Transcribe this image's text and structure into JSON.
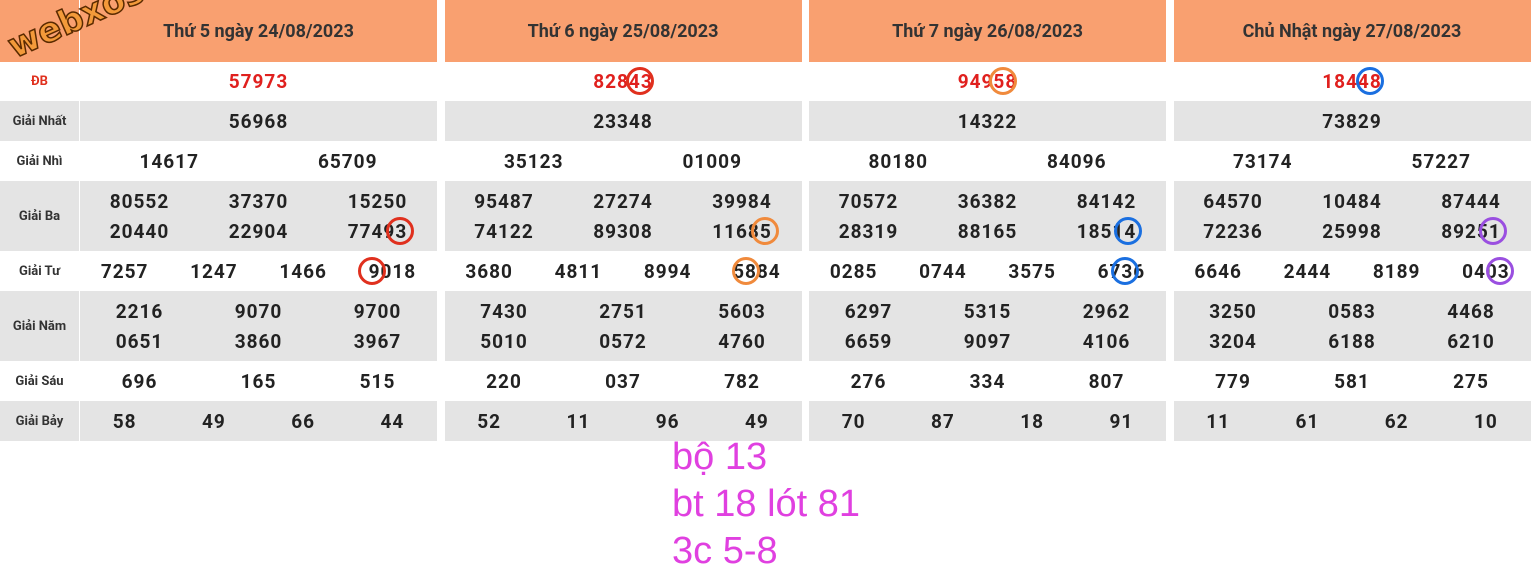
{
  "watermark": "webxoso.net",
  "row_labels": [
    "ĐB",
    "Giải Nhất",
    "Giải Nhì",
    "Giải Ba",
    "Giải Tư",
    "Giải Năm",
    "Giải Sáu",
    "Giải Bảy"
  ],
  "days": [
    {
      "title": "Thứ 5 ngày 24/08/2023",
      "prizes": [
        [
          "57973"
        ],
        [
          "56968"
        ],
        [
          "14617",
          "65709"
        ],
        [
          "80552",
          "37370",
          "15250",
          "20440",
          "22904",
          "77493"
        ],
        [
          "7257",
          "1247",
          "1466",
          "9018"
        ],
        [
          "2216",
          "9070",
          "9700",
          "0651",
          "3860",
          "3967"
        ],
        [
          "696",
          "165",
          "515"
        ],
        [
          "58",
          "49",
          "66",
          "44"
        ]
      ]
    },
    {
      "title": "Thứ 6 ngày 25/08/2023",
      "prizes": [
        [
          "82843"
        ],
        [
          "23348"
        ],
        [
          "35123",
          "01009"
        ],
        [
          "95487",
          "27274",
          "39984",
          "74122",
          "89308",
          "11685"
        ],
        [
          "3680",
          "4811",
          "8994",
          "5884"
        ],
        [
          "7430",
          "2751",
          "5603",
          "5010",
          "0572",
          "4760"
        ],
        [
          "220",
          "037",
          "782"
        ],
        [
          "52",
          "11",
          "96",
          "49"
        ]
      ]
    },
    {
      "title": "Thứ 7 ngày 26/08/2023",
      "prizes": [
        [
          "94958"
        ],
        [
          "14322"
        ],
        [
          "80180",
          "84096"
        ],
        [
          "70572",
          "36382",
          "84142",
          "28319",
          "88165",
          "18514"
        ],
        [
          "0285",
          "0744",
          "3575",
          "6736"
        ],
        [
          "6297",
          "5315",
          "2962",
          "6659",
          "9097",
          "4106"
        ],
        [
          "276",
          "334",
          "807"
        ],
        [
          "70",
          "87",
          "18",
          "91"
        ]
      ]
    },
    {
      "title": "Chủ Nhật ngày 27/08/2023",
      "prizes": [
        [
          "18448"
        ],
        [
          "73829"
        ],
        [
          "73174",
          "57227"
        ],
        [
          "64570",
          "10484",
          "87444",
          "72236",
          "25998",
          "89251"
        ],
        [
          "6646",
          "2444",
          "8189",
          "0403"
        ],
        [
          "3250",
          "0583",
          "4468",
          "3204",
          "6188",
          "6210"
        ],
        [
          "779",
          "581",
          "275"
        ],
        [
          "11",
          "61",
          "62",
          "10"
        ]
      ]
    }
  ],
  "notes": [
    "bộ 13",
    "bt 18 lót 81",
    "3c 5-8"
  ]
}
